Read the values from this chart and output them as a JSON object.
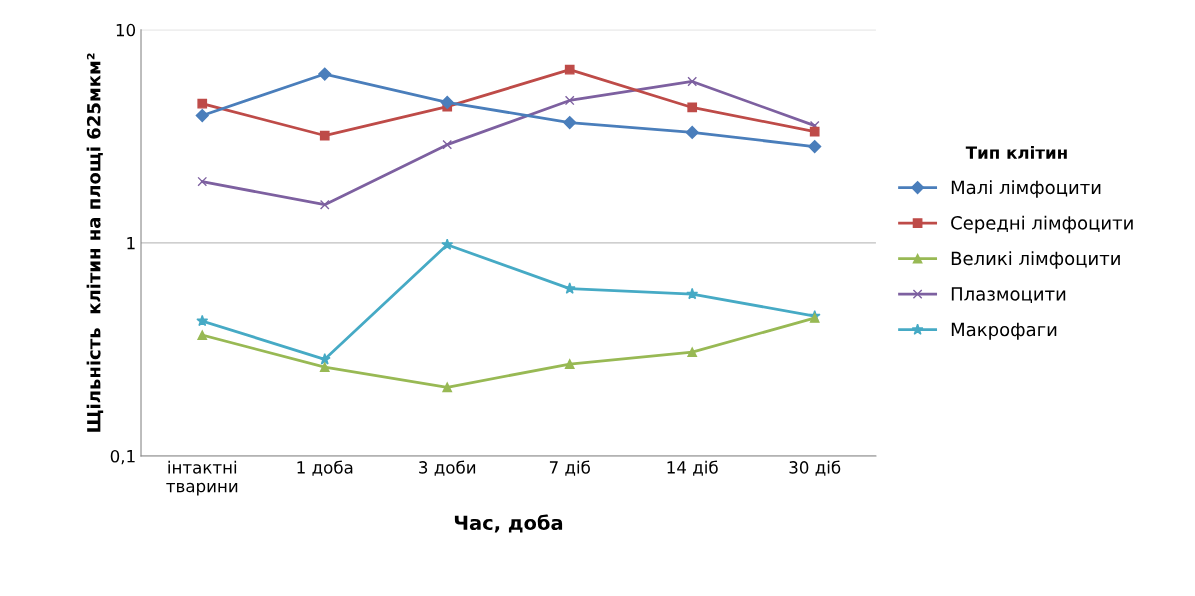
{
  "chart_data": {
    "type": "line",
    "xlabel": "Час, доба",
    "ylabel": "Щільність  клітин на площі 625мкм²",
    "categories": [
      "інтактні\nтварини",
      "1 доба",
      "3 доби",
      "7 діб",
      "14 діб",
      "30 діб"
    ],
    "log": "y",
    "ylim": [
      0.1,
      10
    ],
    "yticks": [
      {
        "value": 0.1,
        "label": "0,1"
      },
      1,
      10
    ],
    "grid": "y",
    "legend": "right",
    "legend_title": "Тип клітин",
    "series": [
      {
        "name": "Малі лімфоцити",
        "color": "#4a7ebb",
        "marker": "diamond",
        "values": [
          3.96,
          6.2,
          4.56,
          3.67,
          3.3,
          2.83
        ]
      },
      {
        "name": "Середні лімфоцити",
        "color": "#be4b48",
        "marker": "square",
        "values": [
          4.5,
          3.19,
          4.36,
          6.5,
          4.32,
          3.33
        ]
      },
      {
        "name": "Великі лімфоцити",
        "color": "#98b954",
        "marker": "triangle",
        "values": [
          0.369,
          0.261,
          0.21,
          0.27,
          0.307,
          0.444
        ]
      },
      {
        "name": "Плазмоцити",
        "color": "#7d60a0",
        "marker": "cross",
        "values": [
          1.94,
          1.51,
          2.89,
          4.66,
          5.72,
          3.55
        ]
      },
      {
        "name": "Макрофаги",
        "color": "#46aac5",
        "marker": "star",
        "values": [
          0.43,
          0.284,
          0.98,
          0.61,
          0.575,
          0.453
        ]
      }
    ]
  }
}
